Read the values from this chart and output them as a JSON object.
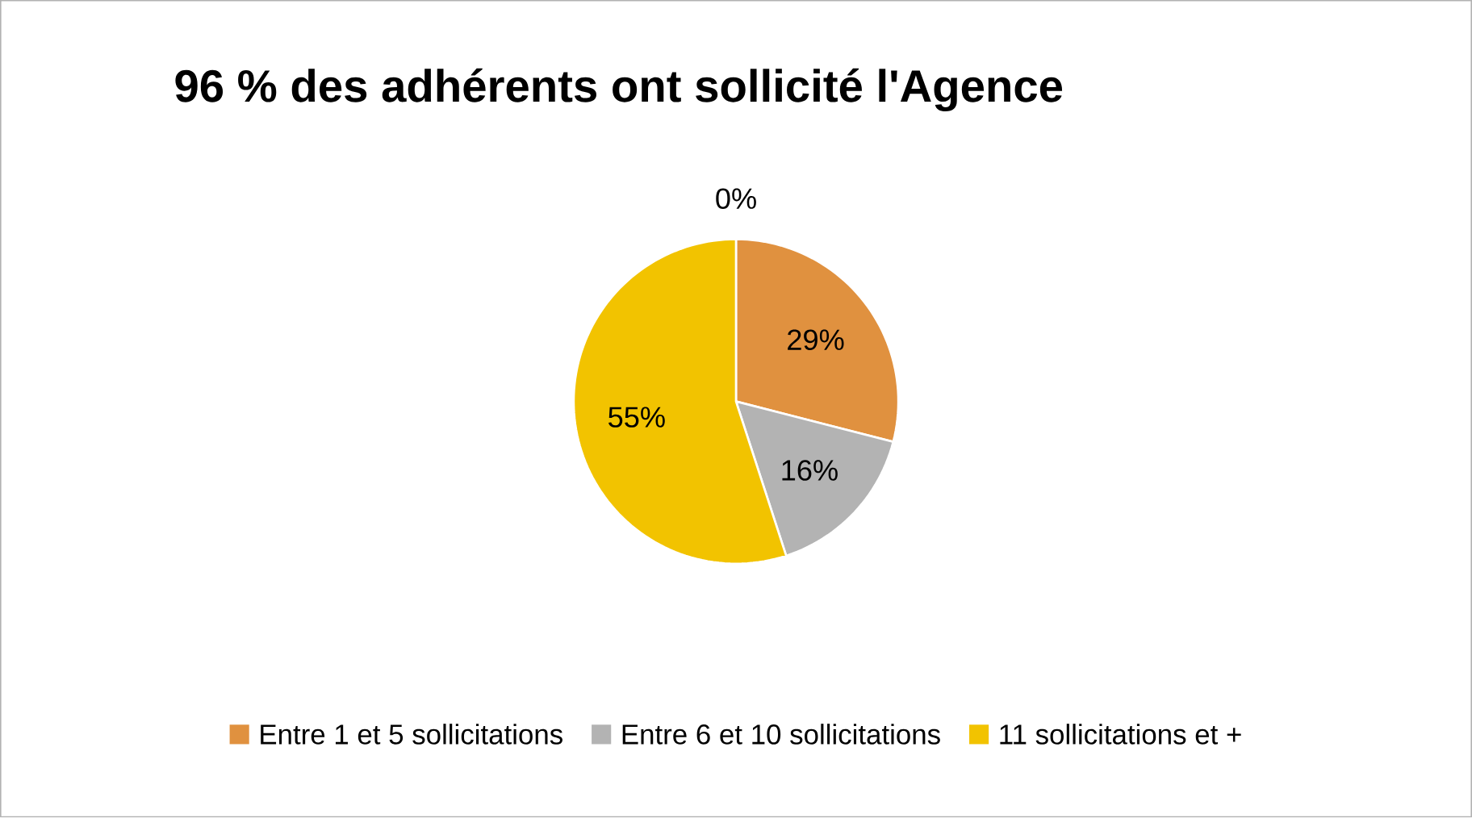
{
  "chart_data": {
    "type": "pie",
    "title": "96 % des adhérents ont sollicité l'Agence",
    "categories": [
      null,
      "Entre 1 et 5 sollicitations",
      "Entre 6 et 10 sollicitations",
      "11 sollicitations et +"
    ],
    "values": [
      0,
      29,
      16,
      55
    ],
    "colors": [
      "#5b9bd5",
      "#e0913f",
      "#b3b3b3",
      "#f2c300"
    ],
    "value_labels": [
      "0%",
      "29%",
      "16%",
      "55%"
    ],
    "legend": "bottom"
  }
}
